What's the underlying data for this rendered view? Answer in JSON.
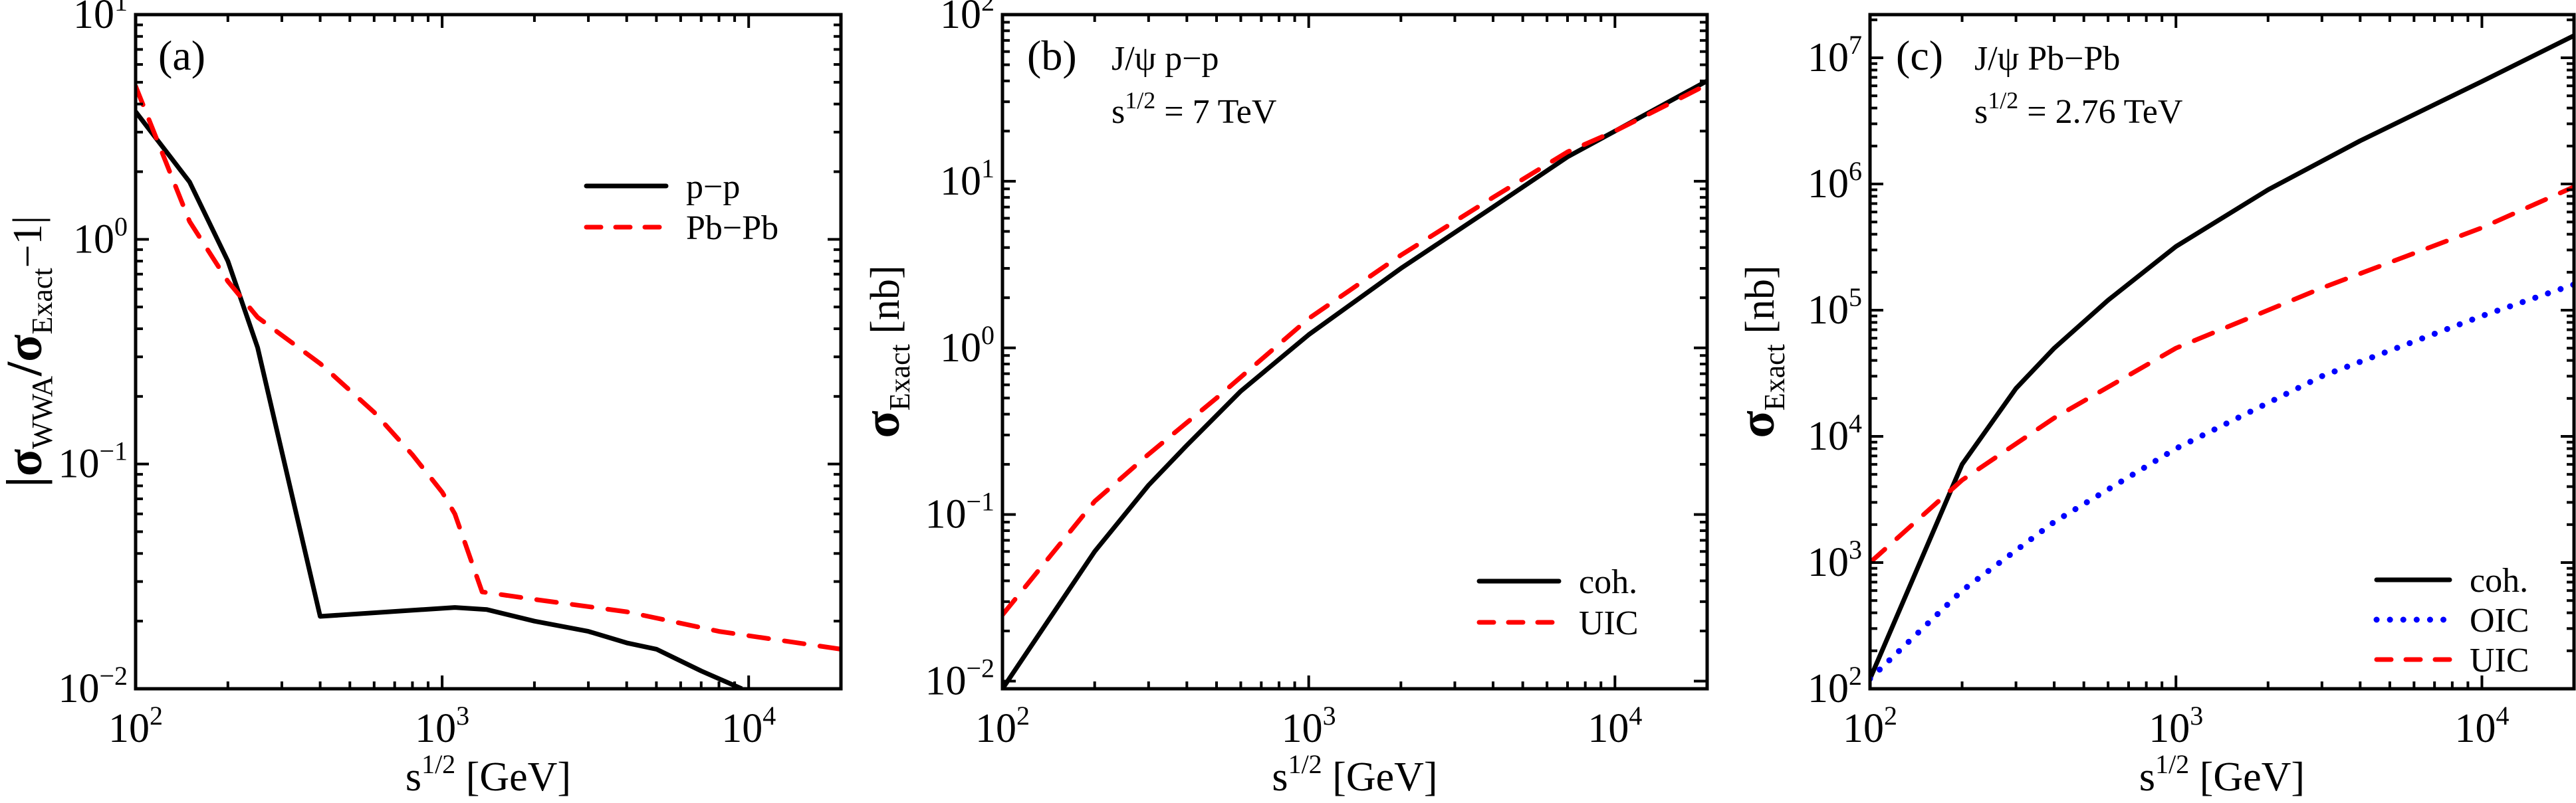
{
  "chart_data": [
    {
      "type": "line",
      "panel_label": "(a)",
      "xscale": "log",
      "yscale": "log",
      "xlim": [
        100,
        20000
      ],
      "ylim": [
        0.01,
        10
      ],
      "xlabel": "s^{1/2} [GeV]",
      "xlabel_parts": {
        "base": "s",
        "sup": "1/2",
        "unit": "[GeV]"
      },
      "ylabel": "|σ_WWA/σ_Exact − 1|",
      "ylabel_parts": {
        "pre": "|σ",
        "sub1": "WWA",
        "mid": "/σ",
        "sub2": "Exact",
        "post": "−1|"
      },
      "xticks": [
        {
          "base": "10",
          "exp": "2",
          "value": 100
        },
        {
          "base": "10",
          "exp": "3",
          "value": 1000
        },
        {
          "base": "10",
          "exp": "4",
          "value": 10000
        }
      ],
      "yticks": [
        {
          "base": "10",
          "exp": "−2",
          "value": 0.01
        },
        {
          "base": "10",
          "exp": "−1",
          "value": 0.1
        },
        {
          "base": "10",
          "exp": "0",
          "value": 1
        },
        {
          "base": "10",
          "exp": "1",
          "value": 10
        }
      ],
      "annotations": [],
      "legend_position": "upper-right",
      "series": [
        {
          "name": "p−p",
          "color": "#000000",
          "style": "solid",
          "x": [
            100,
            150,
            200,
            250,
            400,
            1100,
            1400,
            2000,
            3000,
            4000,
            5000,
            7000,
            9500
          ],
          "y": [
            3.7,
            1.8,
            0.8,
            0.33,
            0.021,
            0.023,
            0.0225,
            0.02,
            0.018,
            0.016,
            0.015,
            0.012,
            0.01
          ]
        },
        {
          "name": "Pb−Pb",
          "color": "#ff0000",
          "style": "dashed",
          "x": [
            100,
            150,
            200,
            250,
            400,
            600,
            800,
            1000,
            1100,
            1350,
            2000,
            4000,
            8000,
            20000
          ],
          "y": [
            4.8,
            1.2,
            0.65,
            0.45,
            0.28,
            0.17,
            0.11,
            0.075,
            0.06,
            0.027,
            0.025,
            0.022,
            0.018,
            0.015
          ]
        }
      ]
    },
    {
      "type": "line",
      "panel_label": "(b)",
      "xscale": "log",
      "yscale": "log",
      "xlim": [
        100,
        20000
      ],
      "ylim": [
        0.009,
        100
      ],
      "xlabel": "s^{1/2} [GeV]",
      "xlabel_parts": {
        "base": "s",
        "sup": "1/2",
        "unit": "[GeV]"
      },
      "ylabel": "σ_Exact [nb]",
      "ylabel_parts": {
        "pre": "σ",
        "sub1": "Exact",
        "post": "[nb]"
      },
      "xticks": [
        {
          "base": "10",
          "exp": "2",
          "value": 100
        },
        {
          "base": "10",
          "exp": "3",
          "value": 1000
        },
        {
          "base": "10",
          "exp": "4",
          "value": 10000
        }
      ],
      "yticks": [
        {
          "base": "10",
          "exp": "−2",
          "value": 0.01
        },
        {
          "base": "10",
          "exp": "−1",
          "value": 0.1
        },
        {
          "base": "10",
          "exp": "0",
          "value": 1
        },
        {
          "base": "10",
          "exp": "1",
          "value": 10
        },
        {
          "base": "10",
          "exp": "2",
          "value": 100
        }
      ],
      "annotations": [
        {
          "line1": "J/ψ  p−p",
          "line2_base": "s",
          "line2_sup": "1/2",
          "line2_rest": " = 7 TeV"
        }
      ],
      "legend_position": "lower-right",
      "series": [
        {
          "name": "coh.",
          "color": "#000000",
          "style": "solid",
          "x": [
            100,
            200,
            300,
            400,
            600,
            1000,
            2000,
            4000,
            7000,
            10000,
            20000
          ],
          "y": [
            0.009,
            0.06,
            0.15,
            0.26,
            0.55,
            1.2,
            3.0,
            7.0,
            14,
            20,
            40
          ]
        },
        {
          "name": "UIC",
          "color": "#ff0000",
          "style": "dashed",
          "x": [
            100,
            200,
            300,
            500,
            1000,
            2000,
            4000,
            7000,
            10000,
            20000
          ],
          "y": [
            0.025,
            0.12,
            0.23,
            0.5,
            1.5,
            3.6,
            8.0,
            15,
            20,
            38
          ]
        }
      ]
    },
    {
      "type": "line",
      "panel_label": "(c)",
      "xscale": "log",
      "yscale": "log",
      "xlim": [
        100,
        20000
      ],
      "ylim": [
        100,
        22000000
      ],
      "xlabel": "s^{1/2} [GeV]",
      "xlabel_parts": {
        "base": "s",
        "sup": "1/2",
        "unit": "[GeV]"
      },
      "ylabel": "σ_Exact [nb]",
      "ylabel_parts": {
        "pre": "σ",
        "sub1": "Exact",
        "post": "[nb]"
      },
      "xticks": [
        {
          "base": "10",
          "exp": "2",
          "value": 100
        },
        {
          "base": "10",
          "exp": "3",
          "value": 1000
        },
        {
          "base": "10",
          "exp": "4",
          "value": 10000
        }
      ],
      "yticks": [
        {
          "base": "10",
          "exp": "2",
          "value": 100
        },
        {
          "base": "10",
          "exp": "3",
          "value": 1000
        },
        {
          "base": "10",
          "exp": "4",
          "value": 10000
        },
        {
          "base": "10",
          "exp": "5",
          "value": 100000
        },
        {
          "base": "10",
          "exp": "6",
          "value": 1000000
        },
        {
          "base": "10",
          "exp": "7",
          "value": 10000000
        }
      ],
      "annotations": [
        {
          "line1": "J/ψ  Pb−Pb",
          "line2_base": "s",
          "line2_sup": "1/2",
          "line2_rest": " = 2.76 TeV"
        }
      ],
      "legend_position": "lower-right",
      "series": [
        {
          "name": "coh.",
          "color": "#000000",
          "style": "solid",
          "x": [
            100,
            200,
            300,
            400,
            600,
            1000,
            2000,
            4000,
            10000,
            20000
          ],
          "y": [
            120,
            6000,
            24000,
            50000,
            120000,
            320000,
            900000,
            2200000,
            6500000,
            15000000
          ]
        },
        {
          "name": "OIC",
          "color": "#0000ff",
          "style": "dotted",
          "x": [
            100,
            200,
            400,
            1000,
            3000,
            10000,
            20000
          ],
          "y": [
            120,
            600,
            2100,
            8000,
            30000,
            90000,
            160000
          ]
        },
        {
          "name": "UIC",
          "color": "#ff0000",
          "style": "dashed",
          "x": [
            100,
            200,
            400,
            1000,
            3000,
            10000,
            20000
          ],
          "y": [
            1000,
            4500,
            14000,
            50000,
            150000,
            450000,
            950000
          ]
        }
      ]
    }
  ]
}
